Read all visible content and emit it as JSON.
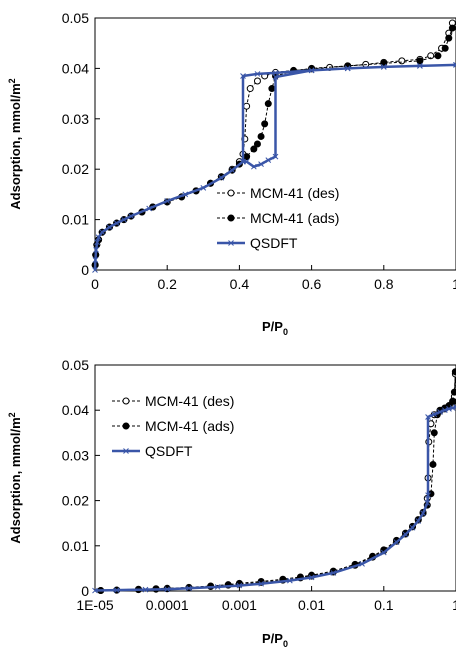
{
  "chart_data": [
    {
      "type": "scatter",
      "xscale": "linear",
      "xlabel_main": "P/P",
      "xlabel_sub": "0",
      "ylabel_main": "Adsorption, mmol/m",
      "ylabel_sup": "2",
      "xlim": [
        0,
        1
      ],
      "ylim": [
        0,
        0.05
      ],
      "xticks": [
        0,
        0.2,
        0.4,
        0.6,
        0.8,
        1
      ],
      "xtick_labels": [
        "0",
        "0.2",
        "0.4",
        "0.6",
        "0.8",
        "1"
      ],
      "yticks": [
        0,
        0.01,
        0.02,
        0.03,
        0.04,
        0.05
      ],
      "ytick_labels": [
        "0",
        "0.01",
        "0.02",
        "0.03",
        "0.04",
        "0.05"
      ],
      "legend_position": "bottom-right",
      "series": [
        {
          "name": "MCM-41 (des)",
          "color": "#000000",
          "marker": "open-circle",
          "line": "dashed",
          "x": [
            0.0005,
            0.002,
            0.005,
            0.01,
            0.02,
            0.04,
            0.06,
            0.08,
            0.1,
            0.13,
            0.16,
            0.2,
            0.24,
            0.28,
            0.32,
            0.35,
            0.38,
            0.4,
            0.41,
            0.415,
            0.42,
            0.43,
            0.45,
            0.47,
            0.5,
            0.55,
            0.6,
            0.65,
            0.7,
            0.75,
            0.8,
            0.85,
            0.9,
            0.93,
            0.96,
            0.98,
            0.99
          ],
          "y": [
            0.001,
            0.003,
            0.005,
            0.006,
            0.0075,
            0.0085,
            0.0093,
            0.01,
            0.0107,
            0.0115,
            0.0125,
            0.0135,
            0.0145,
            0.0157,
            0.0172,
            0.0185,
            0.02,
            0.0215,
            0.023,
            0.026,
            0.0325,
            0.036,
            0.0375,
            0.0385,
            0.0392,
            0.0396,
            0.0399,
            0.0402,
            0.0405,
            0.0408,
            0.0412,
            0.0415,
            0.0418,
            0.0425,
            0.044,
            0.047,
            0.049
          ]
        },
        {
          "name": "MCM-41 (ads)",
          "color": "#000000",
          "marker": "filled-circle",
          "line": "dashed",
          "x": [
            0.0005,
            0.002,
            0.005,
            0.01,
            0.02,
            0.04,
            0.06,
            0.08,
            0.1,
            0.13,
            0.16,
            0.2,
            0.24,
            0.28,
            0.32,
            0.35,
            0.38,
            0.4,
            0.42,
            0.44,
            0.45,
            0.46,
            0.47,
            0.48,
            0.49,
            0.5,
            0.55,
            0.6,
            0.7,
            0.8,
            0.9,
            0.95,
            0.97,
            0.98,
            0.99
          ],
          "y": [
            0.001,
            0.003,
            0.005,
            0.006,
            0.0075,
            0.0085,
            0.0093,
            0.01,
            0.0107,
            0.0115,
            0.0125,
            0.0135,
            0.0145,
            0.0157,
            0.0172,
            0.0185,
            0.0198,
            0.021,
            0.0225,
            0.024,
            0.025,
            0.0265,
            0.029,
            0.033,
            0.036,
            0.0385,
            0.0395,
            0.04,
            0.0405,
            0.041,
            0.0415,
            0.0425,
            0.044,
            0.046,
            0.048
          ]
        },
        {
          "name": "QSDFT",
          "color": "#3a56a8",
          "marker": "x",
          "line": "solid",
          "x": [
            0,
            0.001,
            0.003,
            0.006,
            0.01,
            0.02,
            0.04,
            0.06,
            0.08,
            0.1,
            0.15,
            0.2,
            0.25,
            0.3,
            0.35,
            0.38,
            0.41,
            0.41,
            0.45,
            0.5,
            0.6,
            0.7,
            0.8,
            0.9,
            1.0,
            1.0,
            0.9,
            0.8,
            0.7,
            0.6,
            0.5,
            0.5,
            0.48,
            0.46,
            0.44,
            0.42,
            0.41
          ],
          "y": [
            0,
            0.002,
            0.004,
            0.0055,
            0.0065,
            0.0075,
            0.0085,
            0.0093,
            0.01,
            0.0107,
            0.0122,
            0.0137,
            0.015,
            0.0163,
            0.0183,
            0.0198,
            0.0215,
            0.0385,
            0.0389,
            0.0391,
            0.0396,
            0.04,
            0.0403,
            0.0405,
            0.0407,
            0.0407,
            0.0405,
            0.0403,
            0.04,
            0.0396,
            0.0383,
            0.0225,
            0.0218,
            0.021,
            0.0205,
            0.0215,
            0.0215
          ]
        }
      ]
    },
    {
      "type": "scatter",
      "xscale": "log",
      "xlabel_main": "P/P",
      "xlabel_sub": "0",
      "ylabel_main": "Adsorption, mmol/m",
      "ylabel_sup": "2",
      "xlim": [
        1e-05,
        1
      ],
      "ylim": [
        0,
        0.05
      ],
      "xticks": [
        1e-05,
        0.0001,
        0.001,
        0.01,
        0.1,
        1
      ],
      "xtick_labels": [
        "1E-05",
        "0.0001",
        "0.001",
        "0.01",
        "0.1",
        "1"
      ],
      "yticks": [
        0,
        0.01,
        0.02,
        0.03,
        0.04,
        0.05
      ],
      "ytick_labels": [
        "0",
        "0.01",
        "0.02",
        "0.03",
        "0.04",
        "0.05"
      ],
      "legend_position": "top-left",
      "series": [
        {
          "name": "MCM-41 (des)",
          "color": "#000000",
          "marker": "open-circle",
          "line": "dashed",
          "x": [
            1.2e-05,
            2e-05,
            4e-05,
            7e-05,
            0.0001,
            0.0002,
            0.0004,
            0.0007,
            0.001,
            0.002,
            0.004,
            0.007,
            0.01,
            0.02,
            0.04,
            0.07,
            0.1,
            0.15,
            0.2,
            0.25,
            0.3,
            0.35,
            0.4,
            0.41,
            0.42,
            0.45,
            0.5,
            0.6,
            0.7,
            0.8,
            0.9,
            0.95,
            0.98
          ],
          "y": [
            0.0001,
            0.0002,
            0.0003,
            0.0004,
            0.0005,
            0.0007,
            0.001,
            0.0013,
            0.0015,
            0.0019,
            0.0024,
            0.0029,
            0.0033,
            0.0042,
            0.0057,
            0.0075,
            0.0089,
            0.011,
            0.0126,
            0.0142,
            0.0157,
            0.0172,
            0.0205,
            0.025,
            0.033,
            0.037,
            0.039,
            0.0398,
            0.0403,
            0.041,
            0.0418,
            0.043,
            0.048
          ]
        },
        {
          "name": "MCM-41 (ads)",
          "color": "#000000",
          "marker": "filled-circle",
          "line": "dashed",
          "x": [
            1.2e-05,
            2e-05,
            4e-05,
            7e-05,
            0.0001,
            0.0002,
            0.0004,
            0.0007,
            0.001,
            0.002,
            0.004,
            0.007,
            0.01,
            0.02,
            0.04,
            0.07,
            0.1,
            0.15,
            0.2,
            0.25,
            0.3,
            0.35,
            0.4,
            0.45,
            0.48,
            0.5,
            0.55,
            0.6,
            0.7,
            0.8,
            0.9,
            0.95,
            0.98
          ],
          "y": [
            0.0001,
            0.0002,
            0.0004,
            0.0005,
            0.0006,
            0.0008,
            0.0011,
            0.0014,
            0.0017,
            0.0021,
            0.0026,
            0.0031,
            0.0035,
            0.0044,
            0.0059,
            0.0077,
            0.0091,
            0.0112,
            0.0128,
            0.0143,
            0.0158,
            0.0174,
            0.019,
            0.0215,
            0.028,
            0.035,
            0.039,
            0.04,
            0.0405,
            0.041,
            0.042,
            0.044,
            0.0485
          ]
        },
        {
          "name": "QSDFT",
          "color": "#3a56a8",
          "marker": "x",
          "line": "solid",
          "x": [
            1e-05,
            2e-05,
            5e-05,
            0.0001,
            0.0002,
            0.0005,
            0.001,
            0.002,
            0.005,
            0.01,
            0.02,
            0.05,
            0.1,
            0.15,
            0.2,
            0.25,
            0.3,
            0.35,
            0.4,
            0.41,
            0.41,
            0.5,
            0.6,
            0.7,
            0.8,
            0.9,
            1.0
          ],
          "y": [
            0.0001,
            0.0002,
            0.0003,
            0.0004,
            0.0006,
            0.0009,
            0.0012,
            0.0016,
            0.0023,
            0.003,
            0.004,
            0.006,
            0.0085,
            0.0108,
            0.0125,
            0.014,
            0.0155,
            0.0172,
            0.0195,
            0.0212,
            0.0385,
            0.0391,
            0.0396,
            0.04,
            0.0403,
            0.0405,
            0.0407
          ]
        }
      ]
    }
  ]
}
